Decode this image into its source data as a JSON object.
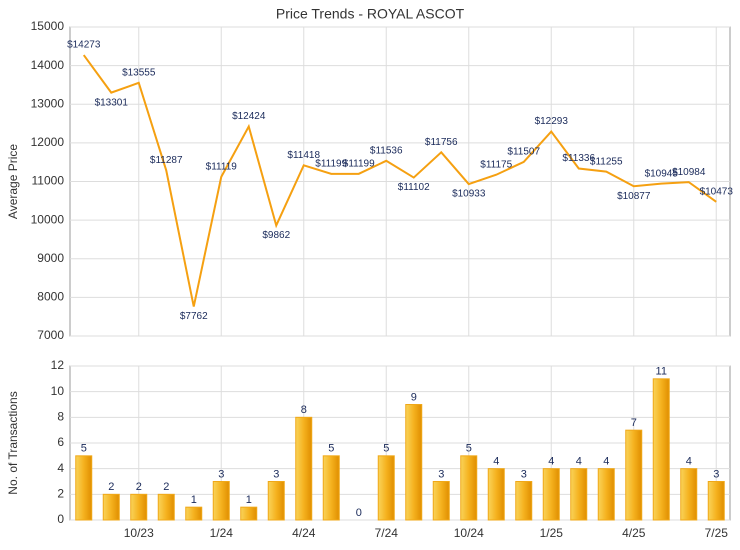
{
  "chart_data": [
    {
      "type": "line",
      "title": "Price Trends - ROYAL ASCOT",
      "ylabel": "Average Price",
      "color": "#f5a011",
      "values": [
        14273,
        13301,
        13555,
        11287,
        7762,
        11119,
        12424,
        9862,
        11418,
        11199,
        11199,
        11536,
        11102,
        11756,
        10933,
        11175,
        11507,
        12293,
        11336,
        11255,
        10877,
        10945,
        10984,
        10473
      ],
      "value_labels": [
        "$14273",
        "$13301",
        "$13555",
        "$11287",
        "$7762",
        "$11119",
        "$12424",
        "$9862",
        "$11418",
        "$11199",
        "$11199",
        "$11536",
        "$11102",
        "$11756",
        "$10933",
        "$11175",
        "$11507",
        "$12293",
        "$11336",
        "$11255",
        "$10877",
        "$10945",
        "$10984",
        "$10473"
      ],
      "ylim": [
        7000,
        15000
      ],
      "yticks": [
        7000,
        8000,
        9000,
        10000,
        11000,
        12000,
        13000,
        14000,
        15000
      ],
      "grid": true
    },
    {
      "type": "bar",
      "ylabel": "No. of Transactions",
      "color": "#f0a818",
      "categories": [
        null,
        null,
        "10/23",
        null,
        null,
        "1/24",
        null,
        null,
        "4/24",
        null,
        null,
        "7/24",
        null,
        null,
        "10/24",
        null,
        null,
        "1/25",
        null,
        null,
        "4/25",
        null,
        null,
        "7/25"
      ],
      "values": [
        5,
        2,
        2,
        2,
        1,
        3,
        1,
        3,
        8,
        5,
        0,
        5,
        9,
        3,
        5,
        4,
        3,
        4,
        4,
        4,
        7,
        11,
        4,
        3
      ],
      "ylim": [
        0,
        12
      ],
      "yticks": [
        0,
        2,
        4,
        6,
        8,
        10,
        12
      ],
      "grid": true
    }
  ]
}
